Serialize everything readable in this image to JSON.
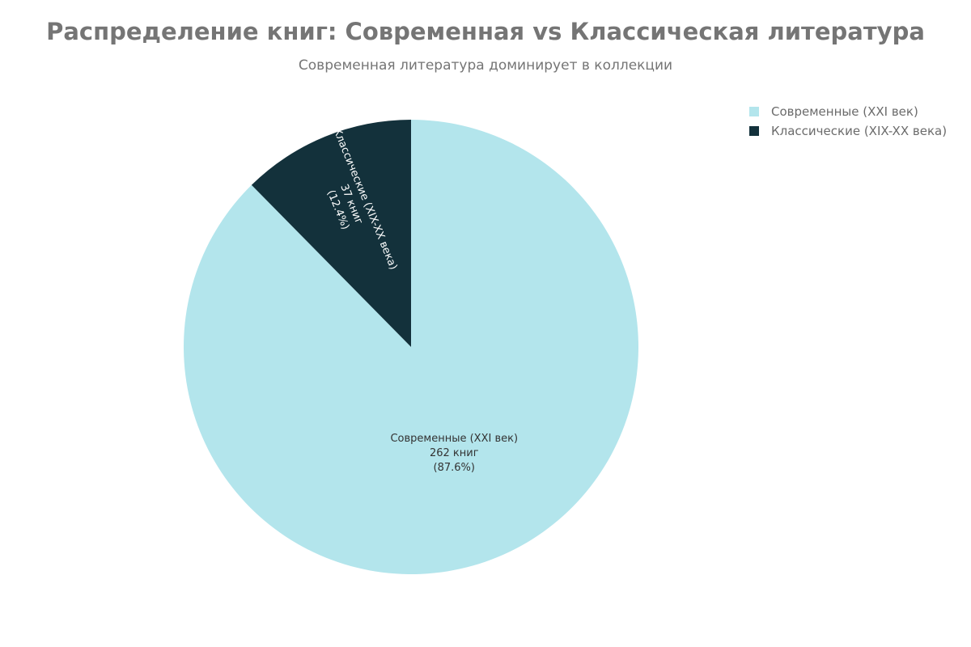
{
  "chart_data": {
    "type": "pie",
    "title": "Распределение книг: Современная vs Классическая литература",
    "subtitle": "Современная литература доминирует в коллекции",
    "legend_position": "top-right",
    "slices": [
      {
        "name": "Современные (XXI век)",
        "value": 262,
        "percent": 87.6,
        "color": "#b3e5ec",
        "label_color": "#333333",
        "label_lines": [
          "Современные (XXI век)",
          "262 книг",
          "(87.6%)"
        ]
      },
      {
        "name": "Классические (XIX-XX века)",
        "value": 37,
        "percent": 12.4,
        "color": "#13313b",
        "label_color": "#ffffff",
        "label_lines": [
          "Классические (XIX-XX века)",
          "37 книг",
          "(12.4%)"
        ]
      }
    ]
  }
}
